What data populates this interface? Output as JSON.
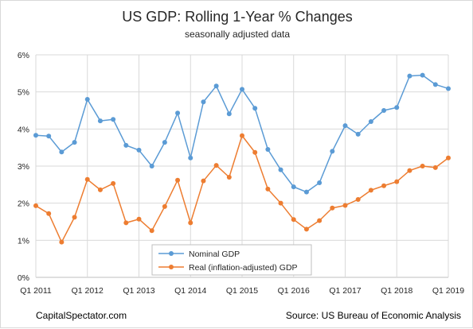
{
  "chart_data": {
    "type": "line",
    "title": "US GDP: Rolling 1-Year % Changes",
    "subtitle": "seasonally adjusted data",
    "ylim": [
      0,
      6
    ],
    "yticks": [
      "0%",
      "1%",
      "2%",
      "3%",
      "4%",
      "5%",
      "6%"
    ],
    "xtick_labels": [
      "Q1 2011",
      "Q1 2012",
      "Q1 2013",
      "Q1 2014",
      "Q1 2015",
      "Q1 2016",
      "Q1 2017",
      "Q1 2018",
      "Q1 2019"
    ],
    "x": [
      "Q1 2011",
      "Q2 2011",
      "Q3 2011",
      "Q4 2011",
      "Q1 2012",
      "Q2 2012",
      "Q3 2012",
      "Q4 2012",
      "Q1 2013",
      "Q2 2013",
      "Q3 2013",
      "Q4 2013",
      "Q1 2014",
      "Q2 2014",
      "Q3 2014",
      "Q4 2014",
      "Q1 2015",
      "Q2 2015",
      "Q3 2015",
      "Q4 2015",
      "Q1 2016",
      "Q2 2016",
      "Q3 2016",
      "Q4 2016",
      "Q1 2017",
      "Q2 2017",
      "Q3 2017",
      "Q4 2017",
      "Q1 2018",
      "Q2 2018",
      "Q3 2018",
      "Q4 2018",
      "Q1 2019"
    ],
    "grid": true,
    "legend_position": "bottom-center",
    "series": [
      {
        "name": "Nominal GDP",
        "color": "#5b9bd5",
        "values": [
          3.83,
          3.81,
          3.38,
          3.64,
          4.8,
          4.22,
          4.26,
          3.56,
          3.43,
          3.0,
          3.64,
          4.43,
          3.22,
          4.73,
          5.16,
          4.41,
          5.07,
          4.56,
          3.45,
          2.9,
          2.44,
          2.3,
          2.55,
          3.4,
          4.09,
          3.86,
          4.2,
          4.5,
          4.58,
          5.43,
          5.45,
          5.2,
          5.09
        ]
      },
      {
        "name": "Real (inflation-adjusted) GDP",
        "color": "#ed7d31",
        "values": [
          1.93,
          1.72,
          0.95,
          1.62,
          2.64,
          2.36,
          2.53,
          1.47,
          1.57,
          1.26,
          1.91,
          2.62,
          1.47,
          2.6,
          3.02,
          2.7,
          3.82,
          3.37,
          2.38,
          2.0,
          1.56,
          1.3,
          1.53,
          1.87,
          1.94,
          2.1,
          2.35,
          2.47,
          2.58,
          2.88,
          3.0,
          2.96,
          3.22
        ]
      }
    ]
  },
  "footer": {
    "left": "CapitalSpectator.com",
    "right": "Source: US Bureau of Economic Analysis"
  }
}
